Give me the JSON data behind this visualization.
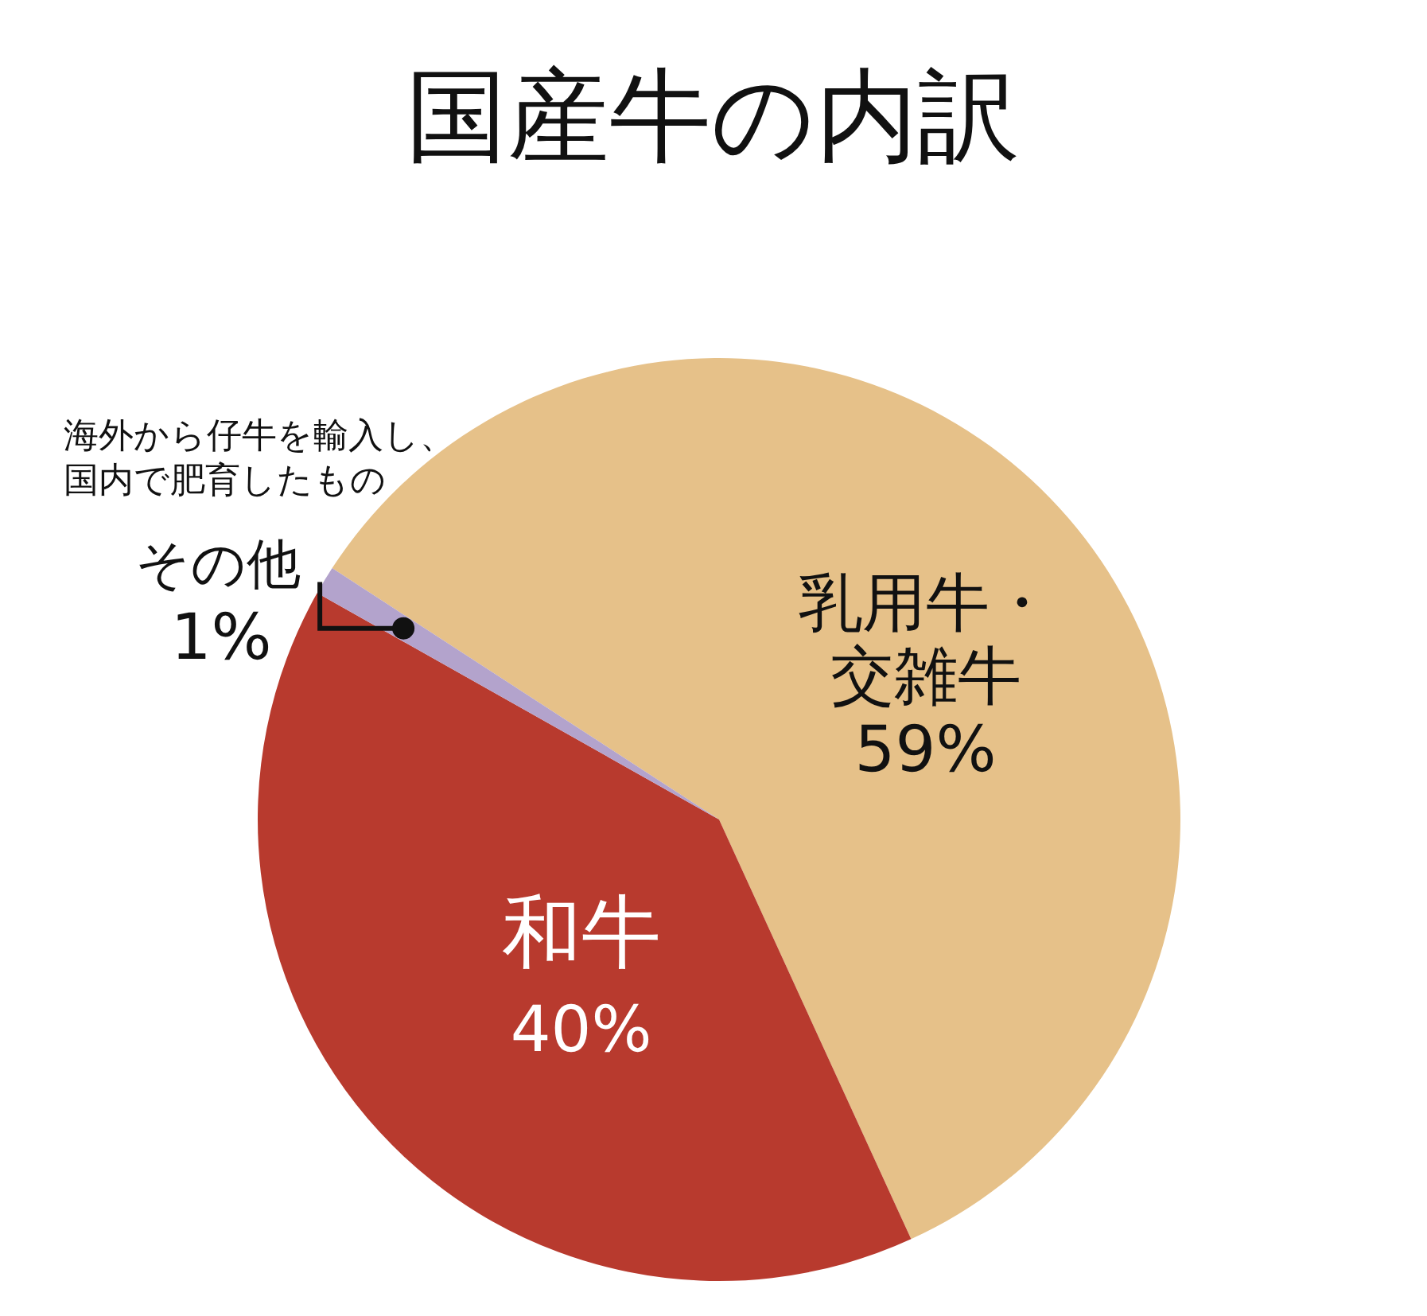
{
  "chart_data": {
    "type": "pie",
    "title": "国産牛の内訳",
    "categories": [
      "乳用牛・交雑牛",
      "和牛",
      "その他"
    ],
    "values": [
      59,
      40,
      1
    ],
    "value_labels": [
      "59%",
      "40%",
      "1%"
    ],
    "colors": [
      "#e6c189",
      "#b83a2e",
      "#b3a3cc"
    ],
    "annotations": [
      "海外から仔牛を輸入し、",
      "国内で肥育したもの"
    ],
    "legend": false
  }
}
